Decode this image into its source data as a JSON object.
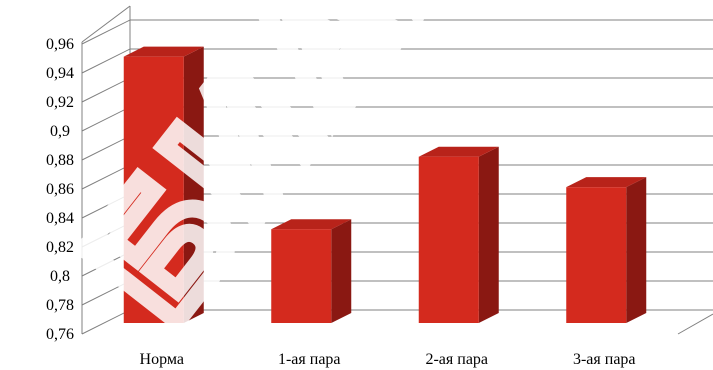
{
  "chart_data": {
    "type": "bar",
    "style": "3d-column",
    "categories": [
      "Норма",
      "1-ая пара",
      "2-ая пара",
      "3-ая пара"
    ],
    "values": [
      0.943,
      0.824,
      0.874,
      0.853
    ],
    "ylim": [
      0.76,
      0.96
    ],
    "yticks": [
      "0,76",
      "0,78",
      "0,8",
      "0,82",
      "0,84",
      "0,86",
      "0,88",
      "0,9",
      "0,92",
      "0,94",
      "0,96"
    ],
    "title": "",
    "xlabel": "",
    "ylabel": "",
    "grid": true,
    "legend": "none",
    "colors": {
      "bar_front": "#d42a1e",
      "bar_side": "#8a1812",
      "bar_top": "#b8231a",
      "grid": "#808080"
    },
    "watermark": "БИАН"
  }
}
